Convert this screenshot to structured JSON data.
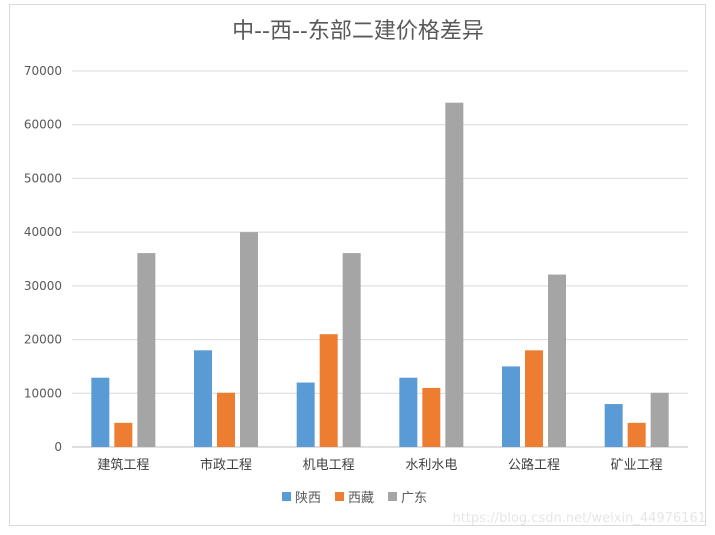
{
  "chart_data": {
    "type": "bar",
    "title": "中--西--东部二建价格差异",
    "categories": [
      "建筑工程",
      "市政工程",
      "机电工程",
      "水利水电",
      "公路工程",
      "矿业工程"
    ],
    "series": [
      {
        "name": "陕西",
        "color": "#5b9bd5",
        "values": [
          12900,
          18000,
          12000,
          12900,
          15000,
          8000
        ]
      },
      {
        "name": "西藏",
        "color": "#ed7d31",
        "values": [
          4500,
          10100,
          21000,
          11000,
          18000,
          4500
        ]
      },
      {
        "name": "广东",
        "color": "#a5a5a5",
        "values": [
          36100,
          40000,
          36100,
          64100,
          32100,
          10100
        ]
      }
    ],
    "ylim": [
      0,
      70000
    ],
    "yticks": [
      0,
      10000,
      20000,
      30000,
      40000,
      50000,
      60000,
      70000
    ],
    "grid": true,
    "legend_position": "bottom"
  },
  "watermark": "https://blog.csdn.net/weixin_44976161"
}
